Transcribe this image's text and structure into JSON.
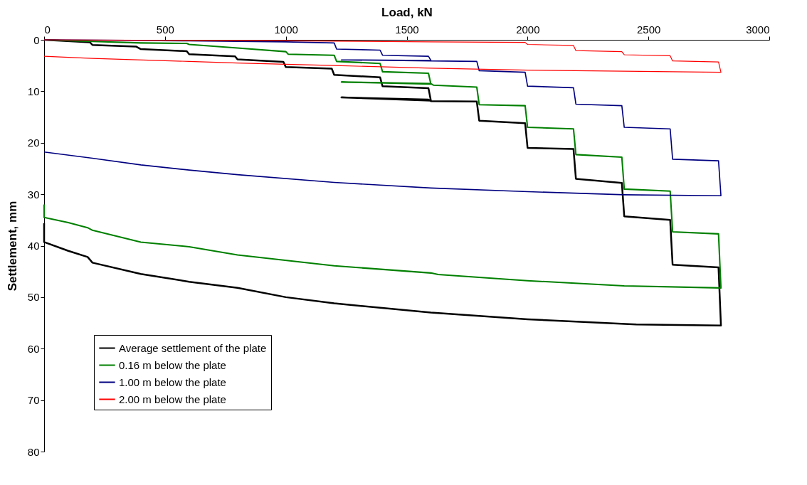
{
  "chart_data": {
    "type": "line",
    "xlabel": "Load, kN",
    "ylabel": "Settlement, mm",
    "xlim": [
      0,
      3000
    ],
    "xticks": [
      0,
      500,
      1000,
      1500,
      2000,
      2500,
      3000
    ],
    "ylim": [
      80,
      0
    ],
    "yticks": [
      0,
      10,
      20,
      30,
      40,
      50,
      60,
      70,
      80
    ],
    "grid": false,
    "legend": "bottom left",
    "marker": "none",
    "line_style": "solid",
    "series": [
      {
        "name": "Average settlement of the plate",
        "color": "#000000",
        "x": [
          0,
          190,
          200,
          380,
          400,
          590,
          600,
          790,
          800,
          990,
          1000,
          1190,
          1200,
          1390,
          1400,
          1590,
          1600,
          1230,
          1590,
          1600,
          1790,
          1800,
          1990,
          2000,
          2190,
          2200,
          2390,
          2400,
          2590,
          2600,
          2790,
          2800,
          2450,
          2000,
          1600,
          1200,
          1000,
          800,
          600,
          400,
          200,
          180,
          100,
          0,
          0
        ],
        "values": [
          0,
          0.5,
          1.0,
          1.3,
          1.8,
          2.2,
          2.8,
          3.2,
          3.8,
          4.3,
          5.3,
          5.6,
          6.8,
          7.3,
          9.0,
          9.4,
          11.8,
          11.2,
          11.6,
          11.9,
          12.0,
          15.7,
          16.2,
          21.0,
          21.2,
          27.0,
          27.8,
          34.3,
          35.0,
          43.7,
          44.2,
          55.5,
          55.3,
          54.3,
          53.0,
          51.2,
          50.0,
          48.2,
          47.0,
          45.5,
          43.3,
          42.2,
          41.0,
          39.3,
          35.6
        ]
      },
      {
        "name": "0.16 m below the plate",
        "color": "#008000",
        "x": [
          0,
          200,
          400,
          590,
          600,
          800,
          1000,
          1010,
          1200,
          1210,
          1390,
          1400,
          1590,
          1600,
          1230,
          1600,
          1610,
          1790,
          1800,
          1990,
          2000,
          2190,
          2200,
          2390,
          2400,
          2590,
          2600,
          2790,
          2800,
          2400,
          2000,
          1630,
          1600,
          1200,
          800,
          600,
          400,
          200,
          180,
          100,
          0,
          0
        ],
        "values": [
          0,
          0.3,
          0.6,
          0.7,
          0.9,
          1.6,
          2.3,
          2.8,
          3.0,
          4.2,
          4.6,
          6.2,
          6.5,
          8.6,
          8.2,
          8.5,
          8.8,
          9.2,
          12.6,
          12.8,
          17.0,
          17.3,
          22.3,
          22.8,
          29.0,
          29.4,
          37.3,
          37.7,
          48.2,
          47.8,
          46.8,
          45.6,
          45.3,
          43.9,
          41.8,
          40.2,
          39.3,
          37.0,
          36.5,
          35.5,
          34.5,
          32.0
        ]
      },
      {
        "name": "1.00 m below the plate",
        "color": "#000080",
        "x": [
          0,
          600,
          1000,
          1200,
          1210,
          1390,
          1400,
          1590,
          1600,
          1230,
          1600,
          1790,
          1800,
          1990,
          2000,
          2190,
          2200,
          2390,
          2400,
          2590,
          2600,
          2790,
          2800,
          2400,
          2000,
          1600,
          1200,
          800,
          600,
          400,
          200,
          0
        ],
        "values": [
          0,
          0.2,
          0.4,
          0.6,
          1.8,
          2.0,
          3.0,
          3.2,
          4.0,
          3.9,
          4.1,
          4.2,
          6.0,
          6.3,
          9.0,
          9.3,
          12.5,
          12.8,
          17.0,
          17.3,
          23.2,
          23.5,
          30.3,
          30.1,
          29.5,
          28.8,
          27.7,
          26.2,
          25.3,
          24.3,
          23.0,
          21.8
        ]
      },
      {
        "name": "2.00 m below the plate",
        "color": "#ff0000",
        "x": [
          0,
          1000,
          1600,
          1990,
          2000,
          2190,
          2200,
          2390,
          2400,
          2590,
          2600,
          2790,
          2800,
          2400,
          2000,
          1600,
          1200,
          800,
          600,
          200,
          0
        ],
        "values": [
          0,
          0.2,
          0.4,
          0.5,
          0.9,
          1.1,
          2.1,
          2.3,
          2.9,
          3.1,
          4.1,
          4.3,
          6.3,
          6.1,
          5.9,
          5.5,
          5.0,
          4.5,
          4.2,
          3.6,
          3.2
        ]
      }
    ]
  }
}
